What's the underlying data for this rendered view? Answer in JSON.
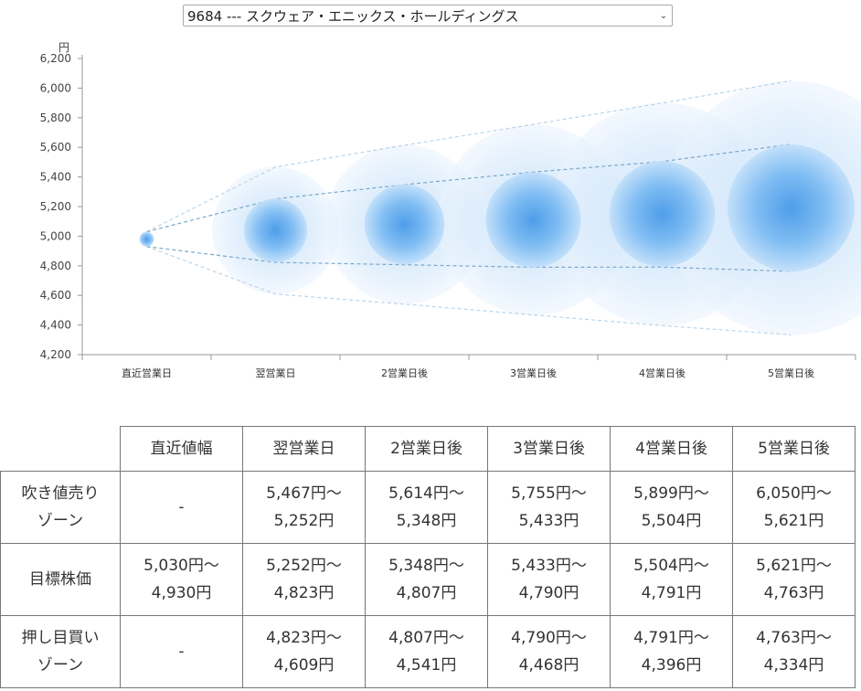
{
  "stock_selector": {
    "selected": "9684 --- スクウェア・エニックス・ホールディングス"
  },
  "chart_data": {
    "type": "scatter",
    "yunit": "円",
    "yticks": [
      "6,200",
      "6,000",
      "5,800",
      "5,600",
      "5,400",
      "5,200",
      "5,000",
      "4,800",
      "4,600",
      "4,400",
      "4,200"
    ],
    "ylim": [
      4200,
      6200
    ],
    "categories": [
      "直近営業日",
      "翌営業日",
      "2営業日後",
      "3営業日後",
      "4営業日後",
      "5営業日後"
    ],
    "center": [
      4980,
      5040,
      5080,
      5110,
      5150,
      5190
    ],
    "target_upper": [
      5030,
      5252,
      5348,
      5433,
      5504,
      5621
    ],
    "target_lower": [
      4930,
      4823,
      4807,
      4790,
      4791,
      4763
    ],
    "high_upper": [
      5030,
      5467,
      5614,
      5755,
      5899,
      6050
    ],
    "low_lower": [
      4930,
      4609,
      4541,
      4468,
      4396,
      4334
    ],
    "grid": false,
    "colors": {
      "core": "#5aa8ee",
      "halo": "#cfe6fb",
      "line_dark": "#7aa7c9",
      "line_light": "#b9d5ea",
      "axis": "#999999"
    }
  },
  "table": {
    "headers": [
      "",
      "直近値幅",
      "翌営業日",
      "2営業日後",
      "3営業日後",
      "4営業日後",
      "5営業日後"
    ],
    "rows": [
      {
        "label": [
          "吹き値売り",
          "ゾーン"
        ],
        "cells": [
          [
            "-"
          ],
          [
            "5,467円～",
            "5,252円"
          ],
          [
            "5,614円～",
            "5,348円"
          ],
          [
            "5,755円～",
            "5,433円"
          ],
          [
            "5,899円～",
            "5,504円"
          ],
          [
            "6,050円～",
            "5,621円"
          ]
        ]
      },
      {
        "label": [
          "目標株価"
        ],
        "cells": [
          [
            "5,030円～",
            "4,930円"
          ],
          [
            "5,252円～",
            "4,823円"
          ],
          [
            "5,348円～",
            "4,807円"
          ],
          [
            "5,433円～",
            "4,790円"
          ],
          [
            "5,504円～",
            "4,791円"
          ],
          [
            "5,621円～",
            "4,763円"
          ]
        ]
      },
      {
        "label": [
          "押し目買い",
          "ゾーン"
        ],
        "cells": [
          [
            "-"
          ],
          [
            "4,823円～",
            "4,609円"
          ],
          [
            "4,807円～",
            "4,541円"
          ],
          [
            "4,790円～",
            "4,468円"
          ],
          [
            "4,791円～",
            "4,396円"
          ],
          [
            "4,763円～",
            "4,334円"
          ]
        ]
      }
    ]
  }
}
